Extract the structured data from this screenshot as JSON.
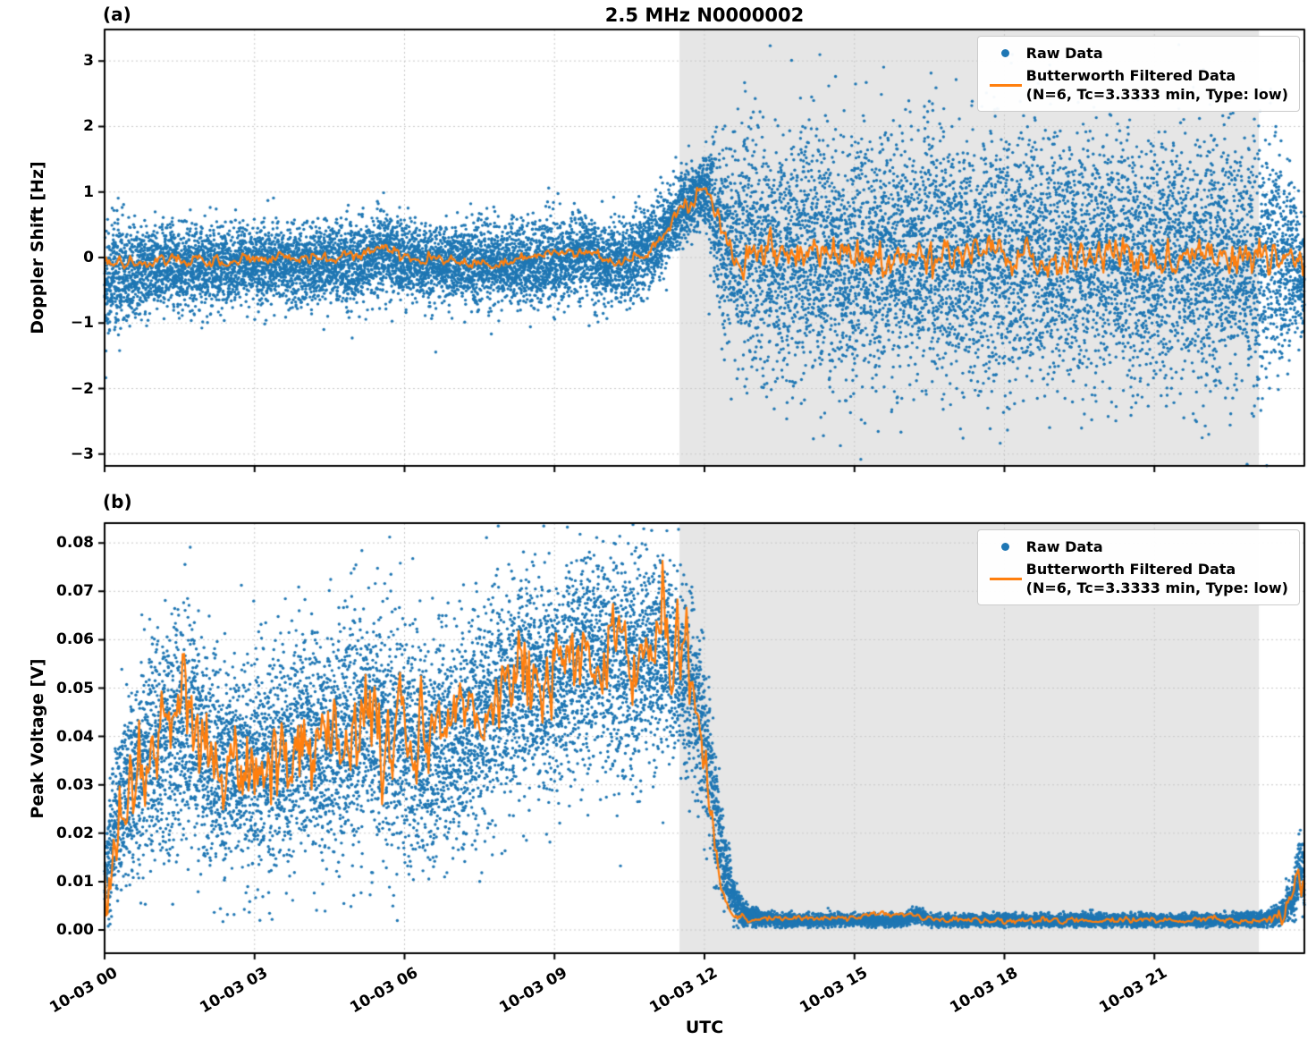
{
  "colors": {
    "raw": "#1f77b4",
    "filtered": "#ff7f0e",
    "shade": "#e6e6e6",
    "grid": "#c9c9c9",
    "axis": "#000000",
    "legend_border": "#cccccc",
    "background": "#ffffff"
  },
  "legend": {
    "raw": "Raw Data",
    "filtered": "Butterworth Filtered Data",
    "filtered_params": "(N=6, Tc=3.3333 min, Type: low)"
  },
  "chart_data": [
    {
      "panel": "(a)",
      "type": "scatter",
      "title": "2.5 MHz N0000002",
      "ylabel": "Doppler Shift [Hz]",
      "xlabel": "",
      "x_unit": "hours since 10-03 00:00 UTC",
      "xlim": [
        0,
        24
      ],
      "ylim": [
        -3.18,
        3.48
      ],
      "xticks": [
        0,
        3,
        6,
        9,
        12,
        15,
        18,
        21
      ],
      "xtick_labels": [
        "10-03 00",
        "10-03 03",
        "10-03 06",
        "10-03 09",
        "10-03 12",
        "10-03 15",
        "10-03 18",
        "10-03 21"
      ],
      "yticks": [
        -3,
        -2,
        -1,
        0,
        1,
        2,
        3
      ],
      "ytick_labels": [
        "−3",
        "−2",
        "−1",
        "0",
        "1",
        "2",
        "3"
      ],
      "shaded_region": [
        11.5,
        23.09
      ],
      "grid": true,
      "legend_position": "upper right",
      "series": [
        {
          "name": "Raw Data",
          "type": "scatter",
          "color": "#1f77b4",
          "points": 16000,
          "outlier_rate": 0.008,
          "outlier_scale": 1.9,
          "envelope": {
            "x": [
              0,
              0.15,
              0.5,
              1,
              2,
              3,
              4,
              5,
              5.6,
              6,
              7,
              8,
              9,
              9.6,
              10,
              10.5,
              11,
              11.3,
              11.6,
              11.85,
              12.05,
              12.2,
              12.35,
              12.6,
              13,
              14,
              16,
              18,
              20,
              22,
              23,
              23.5,
              23.8,
              24
            ],
            "mean": [
              -0.45,
              -0.3,
              -0.2,
              -0.15,
              -0.12,
              -0.1,
              -0.12,
              -0.08,
              0.1,
              -0.05,
              -0.1,
              -0.12,
              -0.05,
              0.05,
              -0.1,
              -0.05,
              0.2,
              0.5,
              0.8,
              0.95,
              1.0,
              0.7,
              0.3,
              0.05,
              0,
              0,
              0,
              0,
              0,
              0,
              0,
              -0.05,
              -0.15,
              -0.3
            ],
            "spread": [
              0.5,
              0.45,
              0.35,
              0.3,
              0.3,
              0.28,
              0.3,
              0.3,
              0.32,
              0.3,
              0.28,
              0.3,
              0.32,
              0.3,
              0.32,
              0.3,
              0.3,
              0.28,
              0.26,
              0.25,
              0.3,
              0.5,
              0.7,
              0.85,
              0.9,
              0.92,
              0.92,
              0.92,
              0.92,
              0.92,
              0.9,
              0.8,
              0.55,
              0.4
            ]
          }
        },
        {
          "name": "Butterworth Filtered Data (N=6, Tc=3.3333 min, Type: low)",
          "type": "line",
          "color": "#ff7f0e",
          "keypoints": {
            "x": [
              0,
              0.3,
              0.6,
              0.9,
              1.2,
              1.5,
              1.8,
              2.1,
              2.4,
              2.7,
              3.0,
              3.3,
              3.6,
              3.9,
              4.2,
              4.5,
              4.8,
              5.1,
              5.4,
              5.6,
              5.8,
              6.1,
              6.4,
              6.7,
              7.0,
              7.3,
              7.6,
              7.9,
              8.2,
              8.5,
              8.8,
              9.1,
              9.4,
              9.6,
              9.9,
              10.2,
              10.5,
              10.8,
              11.1,
              11.4,
              11.7,
              11.9,
              12.05,
              12.2,
              12.35,
              12.5,
              23.5,
              23.8,
              24
            ],
            "y": [
              -0.05,
              -0.1,
              -0.06,
              -0.1,
              -0.04,
              -0.08,
              -0.03,
              -0.07,
              -0.02,
              -0.05,
              0.0,
              -0.04,
              0.03,
              -0.02,
              0.02,
              -0.03,
              0.04,
              0.0,
              0.1,
              0.18,
              0.08,
              0.0,
              -0.05,
              -0.02,
              -0.04,
              -0.1,
              -0.05,
              -0.08,
              -0.04,
              0.0,
              0.05,
              0.1,
              0.05,
              0.12,
              -0.02,
              -0.08,
              -0.05,
              0.05,
              0.3,
              0.6,
              0.88,
              0.97,
              1.0,
              0.8,
              0.35,
              0.05,
              0.0,
              -0.1,
              -0.2
            ]
          },
          "noise_amp": {
            "x": [
              0,
              11.0,
              12.3,
              12.8,
              23.5,
              24
            ],
            "amp": [
              0.04,
              0.04,
              0.08,
              0.13,
              0.13,
              0.1
            ]
          }
        }
      ]
    },
    {
      "panel": "(b)",
      "type": "scatter",
      "title": "",
      "ylabel": "Peak Voltage [V]",
      "xlabel": "UTC",
      "x_unit": "hours since 10-03 00:00 UTC",
      "xlim": [
        0,
        24
      ],
      "ylim": [
        -0.0048,
        0.0841
      ],
      "clip_low": 0.0004,
      "xticks": [
        0,
        3,
        6,
        9,
        12,
        15,
        18,
        21
      ],
      "xtick_labels": [
        "10-03 00",
        "10-03 03",
        "10-03 06",
        "10-03 09",
        "10-03 12",
        "10-03 15",
        "10-03 18",
        "10-03 21"
      ],
      "yticks": [
        0,
        0.01,
        0.02,
        0.03,
        0.04,
        0.05,
        0.06,
        0.07,
        0.08
      ],
      "ytick_labels": [
        "0.00",
        "0.01",
        "0.02",
        "0.03",
        "0.04",
        "0.05",
        "0.06",
        "0.07",
        "0.08"
      ],
      "shaded_region": [
        11.5,
        23.09
      ],
      "grid": true,
      "legend_position": "upper right",
      "series": [
        {
          "name": "Raw Data",
          "type": "scatter",
          "color": "#1f77b4",
          "points": 16000,
          "outlier_rate": 0.006,
          "outlier_scale": 1.6,
          "envelope": {
            "x": [
              0,
              0.15,
              0.4,
              0.8,
              1.2,
              1.6,
              2.0,
              2.4,
              2.8,
              3.2,
              3.6,
              4.0,
              4.4,
              4.8,
              5.2,
              5.6,
              6.0,
              6.4,
              6.8,
              7.2,
              7.6,
              8.0,
              8.4,
              8.8,
              9.2,
              9.6,
              10.0,
              10.4,
              10.8,
              11.2,
              11.5,
              11.8,
              12.0,
              12.2,
              12.4,
              12.6,
              12.8,
              13.2,
              14,
              16,
              16.3,
              16.5,
              18,
              20,
              22,
              23.2,
              23.5,
              23.75,
              23.9,
              24
            ],
            "mean": [
              0.01,
              0.018,
              0.028,
              0.035,
              0.04,
              0.043,
              0.036,
              0.032,
              0.035,
              0.034,
              0.037,
              0.039,
              0.037,
              0.04,
              0.043,
              0.041,
              0.039,
              0.036,
              0.038,
              0.041,
              0.044,
              0.048,
              0.051,
              0.049,
              0.053,
              0.056,
              0.057,
              0.054,
              0.056,
              0.058,
              0.055,
              0.049,
              0.04,
              0.026,
              0.013,
              0.006,
              0.003,
              0.0022,
              0.002,
              0.002,
              0.0032,
              0.002,
              0.002,
              0.002,
              0.002,
              0.0022,
              0.003,
              0.006,
              0.012,
              0.01
            ],
            "spread": [
              0.004,
              0.007,
              0.009,
              0.011,
              0.012,
              0.012,
              0.011,
              0.01,
              0.011,
              0.011,
              0.011,
              0.012,
              0.012,
              0.012,
              0.012,
              0.012,
              0.012,
              0.011,
              0.011,
              0.011,
              0.011,
              0.011,
              0.011,
              0.011,
              0.011,
              0.011,
              0.011,
              0.011,
              0.011,
              0.01,
              0.01,
              0.009,
              0.009,
              0.007,
              0.004,
              0.002,
              0.0012,
              0.0007,
              0.0006,
              0.0006,
              0.0008,
              0.0006,
              0.0006,
              0.0006,
              0.0006,
              0.0007,
              0.001,
              0.002,
              0.004,
              0.003
            ]
          }
        },
        {
          "name": "Butterworth Filtered Data (N=6, Tc=3.3333 min, Type: low)",
          "type": "line",
          "color": "#ff7f0e",
          "keypoints": {
            "x": [
              0,
              0.15,
              0.3,
              0.5,
              0.7,
              0.9,
              1.1,
              1.3,
              1.5,
              1.65,
              1.8,
              2.0,
              2.2,
              2.4,
              2.6,
              2.8,
              3.0,
              3.2,
              3.4,
              3.6,
              3.8,
              4.0,
              4.2,
              4.4,
              4.6,
              4.8,
              5.0,
              5.2,
              5.4,
              5.6,
              5.8,
              6.0,
              6.2,
              6.4,
              6.6,
              6.8,
              7.0,
              7.2,
              7.4,
              7.6,
              7.8,
              8.0,
              8.2,
              8.4,
              8.6,
              8.8,
              9.0,
              9.2,
              9.4,
              9.6,
              9.8,
              10.0,
              10.2,
              10.4,
              10.6,
              10.8,
              11.0,
              11.2,
              11.35,
              11.5,
              11.65,
              11.8,
              11.95,
              12.1,
              12.25,
              12.4,
              12.55,
              12.7,
              12.9,
              13.2,
              16.25,
              16.35,
              23.2,
              23.5,
              23.75,
              23.9,
              24
            ],
            "y": [
              0.01,
              0.016,
              0.022,
              0.028,
              0.033,
              0.03,
              0.038,
              0.044,
              0.05,
              0.052,
              0.04,
              0.036,
              0.032,
              0.03,
              0.034,
              0.031,
              0.034,
              0.03,
              0.036,
              0.032,
              0.036,
              0.04,
              0.035,
              0.038,
              0.042,
              0.037,
              0.041,
              0.044,
              0.048,
              0.043,
              0.04,
              0.042,
              0.038,
              0.036,
              0.039,
              0.041,
              0.043,
              0.046,
              0.043,
              0.045,
              0.047,
              0.05,
              0.053,
              0.05,
              0.054,
              0.048,
              0.055,
              0.058,
              0.053,
              0.06,
              0.054,
              0.057,
              0.064,
              0.056,
              0.053,
              0.057,
              0.06,
              0.068,
              0.058,
              0.055,
              0.057,
              0.05,
              0.042,
              0.03,
              0.015,
              0.007,
              0.0035,
              0.0025,
              0.002,
              0.002,
              0.0035,
              0.002,
              0.002,
              0.0028,
              0.005,
              0.01,
              0.009
            ]
          },
          "noise_amp": {
            "x": [
              0,
              11.5,
              12.4,
              12.8,
              23.2,
              23.6,
              24
            ],
            "amp": [
              0.0045,
              0.0045,
              0.001,
              0.0003,
              0.0003,
              0.0012,
              0.002
            ]
          }
        }
      ]
    }
  ]
}
